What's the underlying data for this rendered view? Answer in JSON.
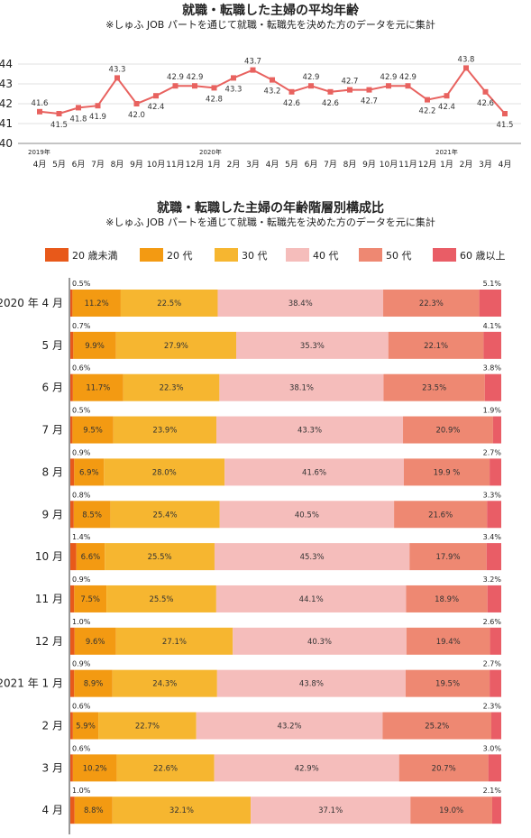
{
  "chart_data": [
    {
      "type": "line",
      "title": "就職・転職した主婦の平均年齢",
      "subtitle": "※しゅふ JOB パートを通じて就職・転職先を決めた方のデータを元に集計",
      "year_labels": [
        "2019年",
        "2020年",
        "2021年"
      ],
      "categories": [
        "4月",
        "5月",
        "6月",
        "7月",
        "8月",
        "9月",
        "10月",
        "11月",
        "12月",
        "1月",
        "2月",
        "3月",
        "4月",
        "5月",
        "6月",
        "7月",
        "8月",
        "9月",
        "10月",
        "11月",
        "12月",
        "1月",
        "2月",
        "3月",
        "4月"
      ],
      "values": [
        41.6,
        41.5,
        41.8,
        41.9,
        43.3,
        42.0,
        42.4,
        42.9,
        42.9,
        42.8,
        43.3,
        43.7,
        43.2,
        42.6,
        42.9,
        42.6,
        42.7,
        42.7,
        42.9,
        42.9,
        42.2,
        42.4,
        43.8,
        42.6,
        41.5
      ],
      "ylim": [
        40,
        44
      ],
      "yticks": [
        "40",
        "41",
        "42",
        "43",
        "44"
      ],
      "grid": true,
      "color": "#e8625f"
    },
    {
      "type": "bar",
      "stacked": "horizontal-100%",
      "title": "就職・転職した主婦の年齢階層別構成比",
      "subtitle": "※しゅふ JOB パートを通じて就職・転職先を決めた方のデータを元に集計",
      "legend_position": "top",
      "categories": [
        "2020 年 4 月",
        "5 月",
        "6 月",
        "7 月",
        "8 月",
        "9 月",
        "10 月",
        "11 月",
        "12 月",
        "2021 年 1 月",
        "2 月",
        "3 月",
        "4 月"
      ],
      "series": [
        {
          "name": "20 歳未満",
          "color": "#e8591a",
          "values": [
            0.5,
            0.7,
            0.6,
            0.5,
            0.9,
            0.8,
            1.4,
            0.9,
            1.0,
            0.9,
            0.6,
            0.6,
            1.0
          ],
          "labels": [
            "0.5%",
            "0.7%",
            "0.6%",
            "0.5%",
            "0.9%",
            "0.8%",
            "1.4%",
            "0.9%",
            "1.0%",
            "0.9%",
            "0.6%",
            "0.6%",
            "1.0%"
          ]
        },
        {
          "name": "20 代",
          "color": "#f39a12",
          "values": [
            11.2,
            9.9,
            11.7,
            9.5,
            6.9,
            8.5,
            6.6,
            7.5,
            9.6,
            8.9,
            5.9,
            10.2,
            8.8
          ],
          "labels": [
            "11.2%",
            "9.9%",
            "11.7%",
            "9.5%",
            "6.9%",
            "8.5%",
            "6.6%",
            "7.5%",
            "9.6%",
            "8.9%",
            "5.9%",
            "10.2%",
            "8.8%"
          ]
        },
        {
          "name": "30 代",
          "color": "#f6b630",
          "values": [
            22.5,
            27.9,
            22.3,
            23.9,
            28.0,
            25.4,
            25.5,
            25.5,
            27.1,
            24.3,
            22.7,
            22.6,
            32.1
          ],
          "labels": [
            "22.5%",
            "27.9%",
            "22.3%",
            "23.9%",
            "28.0%",
            "25.4%",
            "25.5%",
            "25.5%",
            "27.1%",
            "24.3%",
            "22.7%",
            "22.6%",
            "32.1%"
          ]
        },
        {
          "name": "40 代",
          "color": "#f5bdbb",
          "values": [
            38.4,
            35.3,
            38.1,
            43.3,
            41.6,
            40.5,
            45.3,
            44.1,
            40.3,
            43.8,
            43.2,
            42.9,
            37.1
          ],
          "labels": [
            "38.4%",
            "35.3%",
            "38.1%",
            "43.3%",
            "41.6%",
            "40.5%",
            "45.3%",
            "44.1%",
            "40.3%",
            "43.8%",
            "43.2%",
            "42.9%",
            "37.1%"
          ]
        },
        {
          "name": "50 代",
          "color": "#ee8872",
          "values": [
            22.3,
            22.1,
            23.5,
            20.9,
            19.9,
            21.6,
            17.9,
            18.9,
            19.4,
            19.5,
            25.2,
            20.7,
            19.0
          ],
          "labels": [
            "22.3%",
            "22.1%",
            "23.5%",
            "20.9%",
            "19.9 %",
            "21.6%",
            "17.9%",
            "18.9%",
            "19.4%",
            "19.5%",
            "25.2%",
            "20.7%",
            "19.0%"
          ]
        },
        {
          "name": "60 歳以上",
          "color": "#e95d66",
          "values": [
            5.1,
            4.1,
            3.8,
            1.9,
            2.7,
            3.3,
            3.4,
            3.2,
            2.6,
            2.7,
            2.3,
            3.0,
            2.1
          ],
          "labels": [
            "5.1%",
            "4.1%",
            "3.8%",
            "1.9%",
            "2.7%",
            "3.3%",
            "3.4%",
            "3.2%",
            "2.6%",
            "2.7%",
            "2.3%",
            "3.0%",
            "2.1%"
          ]
        }
      ]
    }
  ]
}
